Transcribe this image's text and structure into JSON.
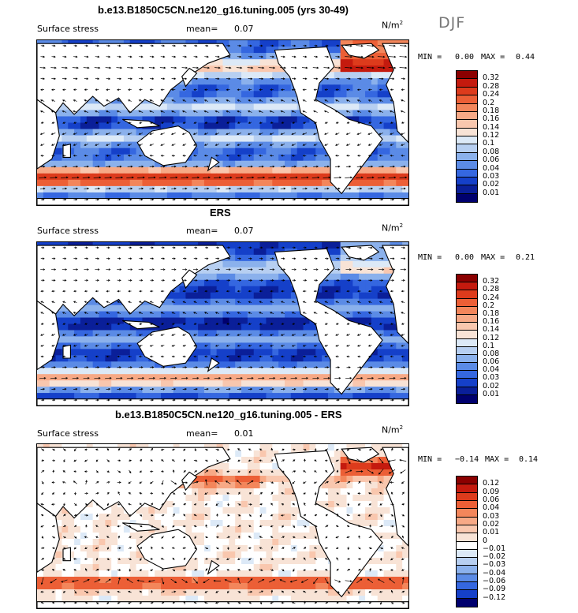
{
  "season": "DJF",
  "chart_data": [
    {
      "type": "heatmap",
      "title": "b.e13.B1850C5CN.ne120_g16.tuning.005 (yrs 30-49)",
      "variable": "Surface stress",
      "mean_label": "mean=",
      "mean": "0.07",
      "units": "N/m",
      "units_exp": "2",
      "min_label": "MIN =",
      "min": "0.00",
      "max_label": "MAX =",
      "max": "0.44",
      "levels": [
        "0.32",
        "0.28",
        "0.24",
        "0.2",
        "0.18",
        "0.16",
        "0.14",
        "0.12",
        "0.1",
        "0.08",
        "0.06",
        "0.04",
        "0.03",
        "0.02",
        "0.01"
      ],
      "colors": [
        "#8b0000",
        "#c41a0e",
        "#dd3b1c",
        "#ec5f36",
        "#f3865b",
        "#f7a986",
        "#f9c7ae",
        "#f8e3d6",
        "#dce9f7",
        "#b7cff1",
        "#8bb1ec",
        "#5b8be6",
        "#3567e0",
        "#1540c9",
        "#0a1f99",
        "#00006e"
      ]
    },
    {
      "type": "heatmap",
      "title": "ERS",
      "variable": "Surface stress",
      "mean_label": "mean=",
      "mean": "0.07",
      "units": "N/m",
      "units_exp": "2",
      "min_label": "MIN =",
      "min": "0.00",
      "max_label": "MAX =",
      "max": "0.21",
      "levels": [
        "0.32",
        "0.28",
        "0.24",
        "0.2",
        "0.18",
        "0.16",
        "0.14",
        "0.12",
        "0.1",
        "0.08",
        "0.06",
        "0.04",
        "0.03",
        "0.02",
        "0.01"
      ],
      "colors": [
        "#8b0000",
        "#c41a0e",
        "#dd3b1c",
        "#ec5f36",
        "#f3865b",
        "#f7a986",
        "#f9c7ae",
        "#f8e3d6",
        "#dce9f7",
        "#b7cff1",
        "#8bb1ec",
        "#5b8be6",
        "#3567e0",
        "#1540c9",
        "#0a1f99",
        "#00006e"
      ]
    },
    {
      "type": "heatmap",
      "title": "b.e13.B1850C5CN.ne120_g16.tuning.005 - ERS",
      "variable": "Surface stress",
      "mean_label": "mean=",
      "mean": "0.01",
      "units": "N/m",
      "units_exp": "2",
      "min_label": "MIN =",
      "min": "−0.14",
      "max_label": "MAX =",
      "max": "0.14",
      "levels": [
        "0.12",
        "0.09",
        "0.06",
        "0.04",
        "0.03",
        "0.02",
        "0.01",
        "0",
        "−0.01",
        "−0.02",
        "−0.03",
        "−0.04",
        "−0.06",
        "−0.09",
        "−0.12"
      ],
      "colors": [
        "#8b0000",
        "#c41a0e",
        "#dd3b1c",
        "#ec5f36",
        "#f3865b",
        "#f7a986",
        "#f9c7ae",
        "#f8e3d6",
        "#ffffff",
        "#dce9f7",
        "#b7cff1",
        "#8bb1ec",
        "#5b8be6",
        "#3567e0",
        "#1540c9",
        "#00006e"
      ]
    }
  ]
}
